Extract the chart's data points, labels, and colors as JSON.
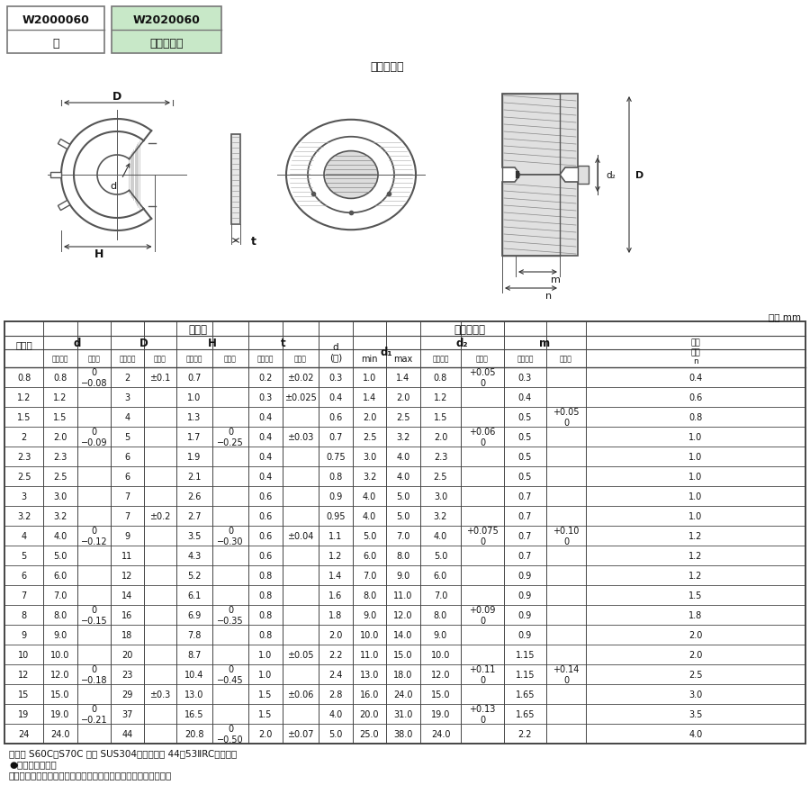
{
  "title_box1": "W2000060",
  "title_box2": "W2020060",
  "subtitle1": "鐵",
  "subtitle2": "ステンレス",
  "shaft_label": "適用する軸",
  "unit_label": "単位 mm",
  "table_data": [
    [
      "0.8",
      "0.8",
      "0\n−0.08",
      "2",
      "±0.1",
      "0.7",
      "",
      "0.2",
      "±0.02",
      "0.3",
      "1.0",
      "1.4",
      "0.8",
      "+0.05\n0",
      "0.3",
      "",
      "0.4"
    ],
    [
      "1.2",
      "1.2",
      "",
      "3",
      "",
      "1.0",
      "",
      "0.3",
      "±0.025",
      "0.4",
      "1.4",
      "2.0",
      "1.2",
      "",
      "0.4",
      "",
      "0.6"
    ],
    [
      "1.5",
      "1.5",
      "",
      "4",
      "",
      "1.3",
      "",
      "0.4",
      "",
      "0.6",
      "2.0",
      "2.5",
      "1.5",
      "",
      "0.5",
      "+0.05\n0",
      "0.8"
    ],
    [
      "2",
      "2.0",
      "0\n−0.09",
      "5",
      "",
      "1.7",
      "0\n−0.25",
      "0.4",
      "±0.03",
      "0.7",
      "2.5",
      "3.2",
      "2.0",
      "+0.06\n0",
      "0.5",
      "",
      "1.0"
    ],
    [
      "2.3",
      "2.3",
      "",
      "6",
      "",
      "1.9",
      "",
      "0.4",
      "",
      "0.75",
      "3.0",
      "4.0",
      "2.3",
      "",
      "0.5",
      "",
      "1.0"
    ],
    [
      "2.5",
      "2.5",
      "",
      "6",
      "",
      "2.1",
      "",
      "0.4",
      "",
      "0.8",
      "3.2",
      "4.0",
      "2.5",
      "",
      "0.5",
      "",
      "1.0"
    ],
    [
      "3",
      "3.0",
      "",
      "7",
      "",
      "2.6",
      "",
      "0.6",
      "",
      "0.9",
      "4.0",
      "5.0",
      "3.0",
      "",
      "0.7",
      "",
      "1.0"
    ],
    [
      "3.2",
      "3.2",
      "",
      "7",
      "±0.2",
      "2.7",
      "",
      "0.6",
      "",
      "0.95",
      "4.0",
      "5.0",
      "3.2",
      "",
      "0.7",
      "",
      "1.0"
    ],
    [
      "4",
      "4.0",
      "0\n−0.12",
      "9",
      "",
      "3.5",
      "0\n−0.30",
      "0.6",
      "±0.04",
      "1.1",
      "5.0",
      "7.0",
      "4.0",
      "+0.075\n0",
      "0.7",
      "+0.10\n0",
      "1.2"
    ],
    [
      "5",
      "5.0",
      "",
      "11",
      "",
      "4.3",
      "",
      "0.6",
      "",
      "1.2",
      "6.0",
      "8.0",
      "5.0",
      "",
      "0.7",
      "",
      "1.2"
    ],
    [
      "6",
      "6.0",
      "",
      "12",
      "",
      "5.2",
      "",
      "0.8",
      "",
      "1.4",
      "7.0",
      "9.0",
      "6.0",
      "",
      "0.9",
      "",
      "1.2"
    ],
    [
      "7",
      "7.0",
      "",
      "14",
      "",
      "6.1",
      "",
      "0.8",
      "",
      "1.6",
      "8.0",
      "11.0",
      "7.0",
      "",
      "0.9",
      "",
      "1.5"
    ],
    [
      "8",
      "8.0",
      "0\n−0.15",
      "16",
      "",
      "6.9",
      "0\n−0.35",
      "0.8",
      "",
      "1.8",
      "9.0",
      "12.0",
      "8.0",
      "+0.09\n0",
      "0.9",
      "",
      "1.8"
    ],
    [
      "9",
      "9.0",
      "",
      "18",
      "",
      "7.8",
      "",
      "0.8",
      "",
      "2.0",
      "10.0",
      "14.0",
      "9.0",
      "",
      "0.9",
      "",
      "2.0"
    ],
    [
      "10",
      "10.0",
      "",
      "20",
      "",
      "8.7",
      "",
      "1.0",
      "±0.05",
      "2.2",
      "11.0",
      "15.0",
      "10.0",
      "",
      "1.15",
      "",
      "2.0"
    ],
    [
      "12",
      "12.0",
      "0\n−0.18",
      "23",
      "",
      "10.4",
      "0\n−0.45",
      "1.0",
      "",
      "2.4",
      "13.0",
      "18.0",
      "12.0",
      "+0.11\n0",
      "1.15",
      "+0.14\n0",
      "2.5"
    ],
    [
      "15",
      "15.0",
      "",
      "29",
      "±0.3",
      "13.0",
      "",
      "1.5",
      "±0.06",
      "2.8",
      "16.0",
      "24.0",
      "15.0",
      "",
      "1.65",
      "",
      "3.0"
    ],
    [
      "19",
      "19.0",
      "0\n−0.21",
      "37",
      "",
      "16.5",
      "",
      "1.5",
      "",
      "4.0",
      "20.0",
      "31.0",
      "19.0",
      "+0.13\n0",
      "1.65",
      "",
      "3.5"
    ],
    [
      "24",
      "24.0",
      "",
      "44",
      "",
      "20.8",
      "0\n−0.50",
      "2.0",
      "±0.07",
      "5.0",
      "25.0",
      "38.0",
      "24.0",
      "",
      "2.2",
      "",
      "4.0"
    ]
  ],
  "footnote1": "・材質 S60C～S70C 及び SUS304　・确さ　 44～53ⅡRC（銅製）",
  "footnote2": "●スタック加工品",
  "footnote3": "備考　適用する軸の寸法は、推奨する寸法を示したものである。"
}
